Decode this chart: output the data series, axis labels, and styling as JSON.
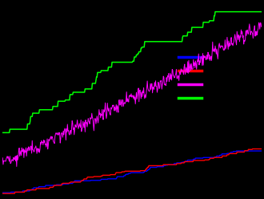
{
  "background_color": "#000000",
  "line_colors": {
    "blue": "#0000ff",
    "red": "#ff0000",
    "magenta": "#ff00ff",
    "green": "#00ff00"
  },
  "legend_colors": [
    "#0000ff",
    "#ff0000",
    "#ff00ff",
    "#00ff00"
  ],
  "n_points": 500,
  "seed": 7,
  "figsize": [
    3.3,
    2.48
  ],
  "dpi": 100
}
